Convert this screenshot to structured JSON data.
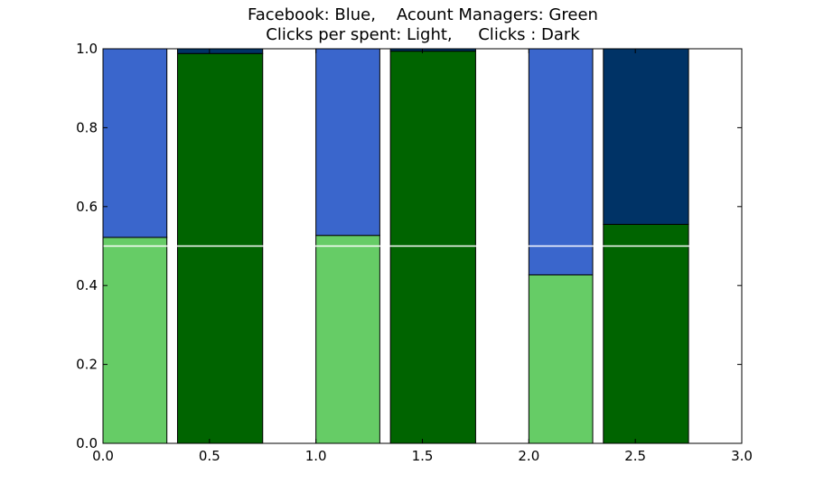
{
  "chart_data": {
    "type": "bar",
    "title_lines": [
      "Facebook: Blue,    Acount Managers: Green",
      "Clicks per spent: Light,     Clicks : Dark"
    ],
    "xlim": [
      0.0,
      3.0
    ],
    "ylim": [
      0.0,
      1.0
    ],
    "xticks": [
      "0.0",
      "0.5",
      "1.0",
      "1.5",
      "2.0",
      "2.5",
      "3.0"
    ],
    "yticks": [
      "0.0",
      "0.2",
      "0.4",
      "0.6",
      "0.8",
      "1.0"
    ],
    "reference_line": 0.5,
    "bars": [
      {
        "x_start": 0.0,
        "width": 0.3,
        "stacks": [
          {
            "value": 0.522,
            "color": "#66cc66"
          },
          {
            "value": 0.478,
            "color": "#3a66cc"
          }
        ]
      },
      {
        "x_start": 0.35,
        "width": 0.4,
        "stacks": [
          {
            "value": 0.988,
            "color": "#006400"
          },
          {
            "value": 0.012,
            "color": "#003366"
          }
        ]
      },
      {
        "x_start": 1.0,
        "width": 0.3,
        "stacks": [
          {
            "value": 0.527,
            "color": "#66cc66"
          },
          {
            "value": 0.473,
            "color": "#3a66cc"
          }
        ]
      },
      {
        "x_start": 1.35,
        "width": 0.4,
        "stacks": [
          {
            "value": 0.994,
            "color": "#006400"
          },
          {
            "value": 0.006,
            "color": "#003366"
          }
        ]
      },
      {
        "x_start": 2.0,
        "width": 0.3,
        "stacks": [
          {
            "value": 0.427,
            "color": "#66cc66"
          },
          {
            "value": 0.573,
            "color": "#3a66cc"
          }
        ]
      },
      {
        "x_start": 2.35,
        "width": 0.4,
        "stacks": [
          {
            "value": 0.555,
            "color": "#006400"
          },
          {
            "value": 0.445,
            "color": "#003366"
          }
        ]
      }
    ]
  }
}
